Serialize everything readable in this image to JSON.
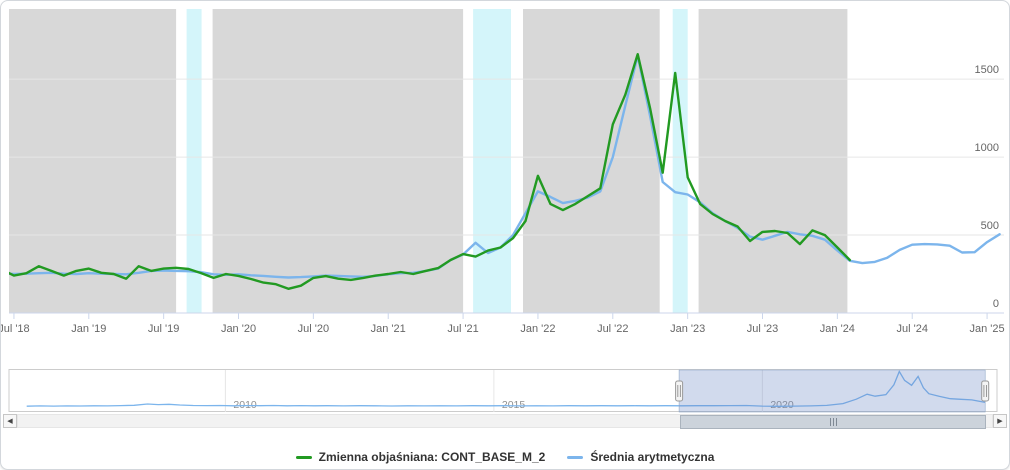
{
  "legend": {
    "items": [
      {
        "label": "Zmienna objaśniana: CONT_BASE_M_2",
        "color": "#229a22"
      },
      {
        "label": "Średnia arytmetyczna",
        "color": "#7cb5ec"
      }
    ]
  },
  "chart_data": {
    "type": "line",
    "title": "",
    "xlabel": "",
    "ylabel": "",
    "grid": true,
    "legend_position": "bottom-center",
    "colors": {
      "band_gray": "#d8d8d8",
      "band_cyan": "#d4f5fa",
      "gridline": "#e6e6e6",
      "axis_line": "#ccd6eb",
      "axis_label": "#666666",
      "nav_label": "#8f8f8f",
      "nav_outline": "#cccccc",
      "nav_mask": "rgba(102,133,194,0.3)",
      "handle_fill": "#f4f4f4",
      "handle_stroke": "#999999"
    },
    "x_axis": {
      "t_min": 2018.467,
      "t_max": 2025.113,
      "ticks": [
        {
          "label": "Jul '18",
          "t": 2018.5
        },
        {
          "label": "Jan '19",
          "t": 2019.0
        },
        {
          "label": "Jul '19",
          "t": 2019.5
        },
        {
          "label": "Jan '20",
          "t": 2020.0
        },
        {
          "label": "Jul '20",
          "t": 2020.5
        },
        {
          "label": "Jan '21",
          "t": 2021.0
        },
        {
          "label": "Jul '21",
          "t": 2021.5
        },
        {
          "label": "Jan '22",
          "t": 2022.0
        },
        {
          "label": "Jul '22",
          "t": 2022.5
        },
        {
          "label": "Jan '23",
          "t": 2023.0
        },
        {
          "label": "Jul '23",
          "t": 2023.5
        },
        {
          "label": "Jan '24",
          "t": 2024.0
        },
        {
          "label": "Jul '24",
          "t": 2024.5
        },
        {
          "label": "Jan '25",
          "t": 2025.0
        }
      ]
    },
    "y_axis": {
      "min": 0,
      "max": 1950,
      "position": "right",
      "ticks": [
        {
          "label": "0",
          "v": 0
        },
        {
          "label": "500",
          "v": 500
        },
        {
          "label": "1000",
          "v": 1000
        },
        {
          "label": "1500",
          "v": 1500
        }
      ]
    },
    "plot_bands_gray": [
      {
        "from": 2018.467,
        "to": 2019.583
      },
      {
        "from": 2019.827,
        "to": 2021.5
      },
      {
        "from": 2021.9,
        "to": 2022.813
      },
      {
        "from": 2023.073,
        "to": 2024.067
      }
    ],
    "plot_bands_cyan": [
      {
        "from": 2019.653,
        "to": 2019.753
      },
      {
        "from": 2021.567,
        "to": 2021.82
      },
      {
        "from": 2022.9,
        "to": 2023.0
      }
    ],
    "series": [
      {
        "name": "Zmienna objaśniana: CONT_BASE_M_2",
        "color": "#229a22",
        "start": {
          "year": 2018,
          "month": 6
        },
        "values": [
          280,
          240,
          255,
          300,
          270,
          240,
          270,
          285,
          258,
          250,
          220,
          300,
          270,
          285,
          290,
          282,
          256,
          225,
          250,
          238,
          218,
          195,
          185,
          155,
          175,
          225,
          237,
          220,
          212,
          225,
          240,
          250,
          263,
          250,
          270,
          288,
          340,
          378,
          362,
          400,
          420,
          480,
          590,
          880,
          700,
          660,
          700,
          750,
          800,
          1210,
          1400,
          1660,
          1310,
          900,
          1540,
          870,
          700,
          635,
          590,
          555,
          462,
          520,
          526,
          513,
          442,
          530,
          500,
          420,
          340
        ]
      },
      {
        "name": "Średnia arytmetyczna",
        "color": "#7cb5ec",
        "start": {
          "year": 2018,
          "month": 6
        },
        "values": [
          255,
          250,
          252,
          255,
          258,
          252,
          250,
          255,
          252,
          250,
          248,
          258,
          270,
          272,
          270,
          268,
          262,
          248,
          245,
          248,
          242,
          238,
          232,
          228,
          230,
          235,
          240,
          238,
          235,
          232,
          238,
          248,
          255,
          258,
          270,
          285,
          340,
          375,
          450,
          385,
          420,
          500,
          640,
          780,
          745,
          705,
          720,
          740,
          780,
          1000,
          1330,
          1650,
          1260,
          840,
          775,
          760,
          710,
          640,
          590,
          545,
          490,
          470,
          495,
          520,
          505,
          495,
          470,
          400,
          335,
          320,
          328,
          355,
          405,
          438,
          442,
          440,
          432,
          388,
          390,
          455,
          505
        ]
      }
    ],
    "navigator": {
      "t_min": 2005.97,
      "t_max": 2024.37,
      "y_max": 1700,
      "ticks": [
        {
          "label": "2010",
          "t": 2010
        },
        {
          "label": "2015",
          "t": 2015
        },
        {
          "label": "2020",
          "t": 2020
        }
      ],
      "selection": {
        "from": 2018.45,
        "to": 2024.15
      },
      "series": {
        "color": "#7cb5ec",
        "points": [
          [
            2006.3,
            235
          ],
          [
            2006.55,
            245
          ],
          [
            2006.8,
            238
          ],
          [
            2007.05,
            248
          ],
          [
            2007.3,
            242
          ],
          [
            2007.55,
            252
          ],
          [
            2007.8,
            246
          ],
          [
            2008.05,
            258
          ],
          [
            2008.3,
            272
          ],
          [
            2008.55,
            325
          ],
          [
            2008.75,
            298
          ],
          [
            2008.95,
            310
          ],
          [
            2009.15,
            285
          ],
          [
            2009.4,
            265
          ],
          [
            2009.65,
            258
          ],
          [
            2009.9,
            262
          ],
          [
            2010.15,
            252
          ],
          [
            2010.4,
            260
          ],
          [
            2010.65,
            255
          ],
          [
            2010.9,
            262
          ],
          [
            2011.15,
            250
          ],
          [
            2011.4,
            258
          ],
          [
            2011.65,
            252
          ],
          [
            2011.9,
            256
          ],
          [
            2012.2,
            248
          ],
          [
            2012.5,
            254
          ],
          [
            2012.8,
            250
          ],
          [
            2013.1,
            244
          ],
          [
            2013.4,
            250
          ],
          [
            2013.7,
            246
          ],
          [
            2014.0,
            252
          ],
          [
            2014.3,
            248
          ],
          [
            2014.6,
            253
          ],
          [
            2014.9,
            249
          ],
          [
            2015.2,
            254
          ],
          [
            2015.5,
            247
          ],
          [
            2015.8,
            252
          ],
          [
            2016.1,
            248
          ],
          [
            2016.4,
            253
          ],
          [
            2016.7,
            249
          ],
          [
            2017.0,
            254
          ],
          [
            2017.3,
            250
          ],
          [
            2017.6,
            255
          ],
          [
            2017.9,
            251
          ],
          [
            2018.2,
            256
          ],
          [
            2018.5,
            252
          ],
          [
            2018.8,
            257
          ],
          [
            2019.1,
            253
          ],
          [
            2019.4,
            258
          ],
          [
            2019.7,
            262
          ],
          [
            2020.0,
            240
          ],
          [
            2020.3,
            232
          ],
          [
            2020.6,
            238
          ],
          [
            2020.9,
            245
          ],
          [
            2021.2,
            268
          ],
          [
            2021.5,
            340
          ],
          [
            2021.75,
            520
          ],
          [
            2021.95,
            720
          ],
          [
            2022.1,
            640
          ],
          [
            2022.3,
            700
          ],
          [
            2022.45,
            1100
          ],
          [
            2022.55,
            1640
          ],
          [
            2022.65,
            1280
          ],
          [
            2022.78,
            1080
          ],
          [
            2022.9,
            1440
          ],
          [
            2023.0,
            980
          ],
          [
            2023.1,
            740
          ],
          [
            2023.3,
            630
          ],
          [
            2023.5,
            540
          ],
          [
            2023.7,
            515
          ],
          [
            2023.9,
            490
          ],
          [
            2024.05,
            430
          ],
          [
            2024.15,
            390
          ]
        ]
      }
    },
    "scrollbar": {
      "left_arrow": "◀",
      "right_arrow": "▶"
    }
  }
}
